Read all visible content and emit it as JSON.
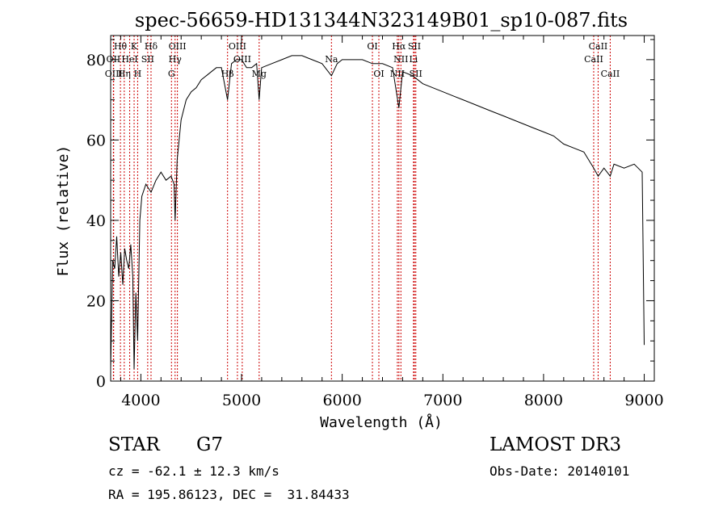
{
  "chart_data": {
    "type": "line",
    "title": "spec-56659-HD131344N323149B01_sp10-087.fits",
    "xlabel": "Wavelength (Å)",
    "ylabel": "Flux (relative)",
    "xlim": [
      3700,
      9100
    ],
    "ylim": [
      0,
      86
    ],
    "xticks": [
      4000,
      5000,
      6000,
      7000,
      8000,
      9000
    ],
    "yticks": [
      0,
      20,
      40,
      60,
      80
    ],
    "series": [
      {
        "name": "flux",
        "x": [
          3700,
          3720,
          3740,
          3760,
          3780,
          3800,
          3820,
          3840,
          3860,
          3880,
          3900,
          3920,
          3933,
          3950,
          3968,
          3990,
          4010,
          4050,
          4101,
          4150,
          4200,
          4250,
          4300,
          4330,
          4340,
          4360,
          4400,
          4450,
          4500,
          4550,
          4600,
          4650,
          4700,
          4750,
          4800,
          4861,
          4900,
          4950,
          5000,
          5050,
          5100,
          5150,
          5175,
          5200,
          5300,
          5400,
          5500,
          5600,
          5700,
          5800,
          5893,
          5950,
          6000,
          6100,
          6200,
          6300,
          6400,
          6500,
          6563,
          6600,
          6700,
          6800,
          6900,
          7000,
          7100,
          7200,
          7300,
          7400,
          7500,
          7600,
          7700,
          7800,
          7900,
          8000,
          8100,
          8200,
          8300,
          8400,
          8498,
          8542,
          8600,
          8662,
          8700,
          8800,
          8900,
          8980,
          9000
        ],
        "y": [
          3,
          30,
          28,
          36,
          26,
          32,
          24,
          33,
          30,
          28,
          34,
          26,
          3,
          22,
          10,
          40,
          46,
          49,
          47,
          50,
          52,
          50,
          51,
          49,
          40,
          55,
          65,
          70,
          72,
          73,
          75,
          76,
          77,
          78,
          78,
          70,
          79,
          80,
          80,
          78,
          78,
          79,
          70,
          78,
          79,
          80,
          81,
          81,
          80,
          79,
          76,
          79,
          80,
          80,
          80,
          79,
          79,
          78,
          68,
          77,
          76,
          74,
          73,
          72,
          71,
          70,
          69,
          68,
          67,
          66,
          65,
          64,
          63,
          62,
          61,
          59,
          58,
          57,
          53,
          51,
          53,
          51,
          54,
          53,
          54,
          52,
          9
        ]
      }
    ],
    "lines": [
      {
        "name": "Hθ",
        "wl": 3797,
        "row": 1,
        "side": "below"
      },
      {
        "name": "OII",
        "wl": 3727,
        "row": 2,
        "side": "below"
      },
      {
        "name": "OIII",
        "wl": 3730,
        "row": 3,
        "side": "below"
      },
      {
        "name": "HeI",
        "wl": 3889,
        "row": 2,
        "side": "below"
      },
      {
        "name": "Hη",
        "wl": 3835,
        "row": 3,
        "side": "below"
      },
      {
        "name": "K",
        "wl": 3933,
        "row": 1,
        "side": "below"
      },
      {
        "name": "H",
        "wl": 3968,
        "row": 3,
        "side": "below"
      },
      {
        "name": "Hδ",
        "wl": 4101,
        "row": 1,
        "side": "below"
      },
      {
        "name": "SII",
        "wl": 4068,
        "row": 2,
        "side": "below"
      },
      {
        "name": "OIII",
        "wl": 4363,
        "row": 1,
        "side": "below"
      },
      {
        "name": "Hγ",
        "wl": 4340,
        "row": 2,
        "side": "below"
      },
      {
        "name": "G",
        "wl": 4304,
        "row": 3,
        "side": "below"
      },
      {
        "name": "OIII",
        "wl": 4959,
        "row": 1,
        "side": "below"
      },
      {
        "name": "OIII",
        "wl": 5007,
        "row": 2,
        "side": "below"
      },
      {
        "name": "Hβ",
        "wl": 4861,
        "row": 3,
        "side": "below"
      },
      {
        "name": "Mg",
        "wl": 5175,
        "row": 3,
        "side": "below"
      },
      {
        "name": "Na",
        "wl": 5893,
        "row": 2,
        "side": "below"
      },
      {
        "name": "OI",
        "wl": 6300,
        "row": 1,
        "side": "below"
      },
      {
        "name": "OI",
        "wl": 6364,
        "row": 3,
        "side": "below"
      },
      {
        "name": "Hα",
        "wl": 6563,
        "row": 1,
        "side": "below"
      },
      {
        "name": "SII",
        "wl": 6717,
        "row": 1,
        "side": "below"
      },
      {
        "name": "NII",
        "wl": 6583,
        "row": 2,
        "side": "below"
      },
      {
        "name": "Li",
        "wl": 6708,
        "row": 2,
        "side": "below"
      },
      {
        "name": "NII",
        "wl": 6548,
        "row": 3,
        "side": "below"
      },
      {
        "name": "SII",
        "wl": 6731,
        "row": 3,
        "side": "below"
      },
      {
        "name": "CaII",
        "wl": 8542,
        "row": 1,
        "side": "below"
      },
      {
        "name": "CaII",
        "wl": 8498,
        "row": 2,
        "side": "below"
      },
      {
        "name": "CaII",
        "wl": 8662,
        "row": 3,
        "side": "below"
      }
    ]
  },
  "info": {
    "object_class": "STAR",
    "subclass": "G7",
    "survey": "LAMOST DR3",
    "cz": "cz = -62.1 ± 12.3 km/s",
    "obs_date": "Obs-Date: 20140101",
    "coords": "RA = 195.86123, DEC =  31.84433"
  },
  "colors": {
    "axis": "#000000",
    "spectrum": "#000000",
    "marker": "#cc0000"
  }
}
